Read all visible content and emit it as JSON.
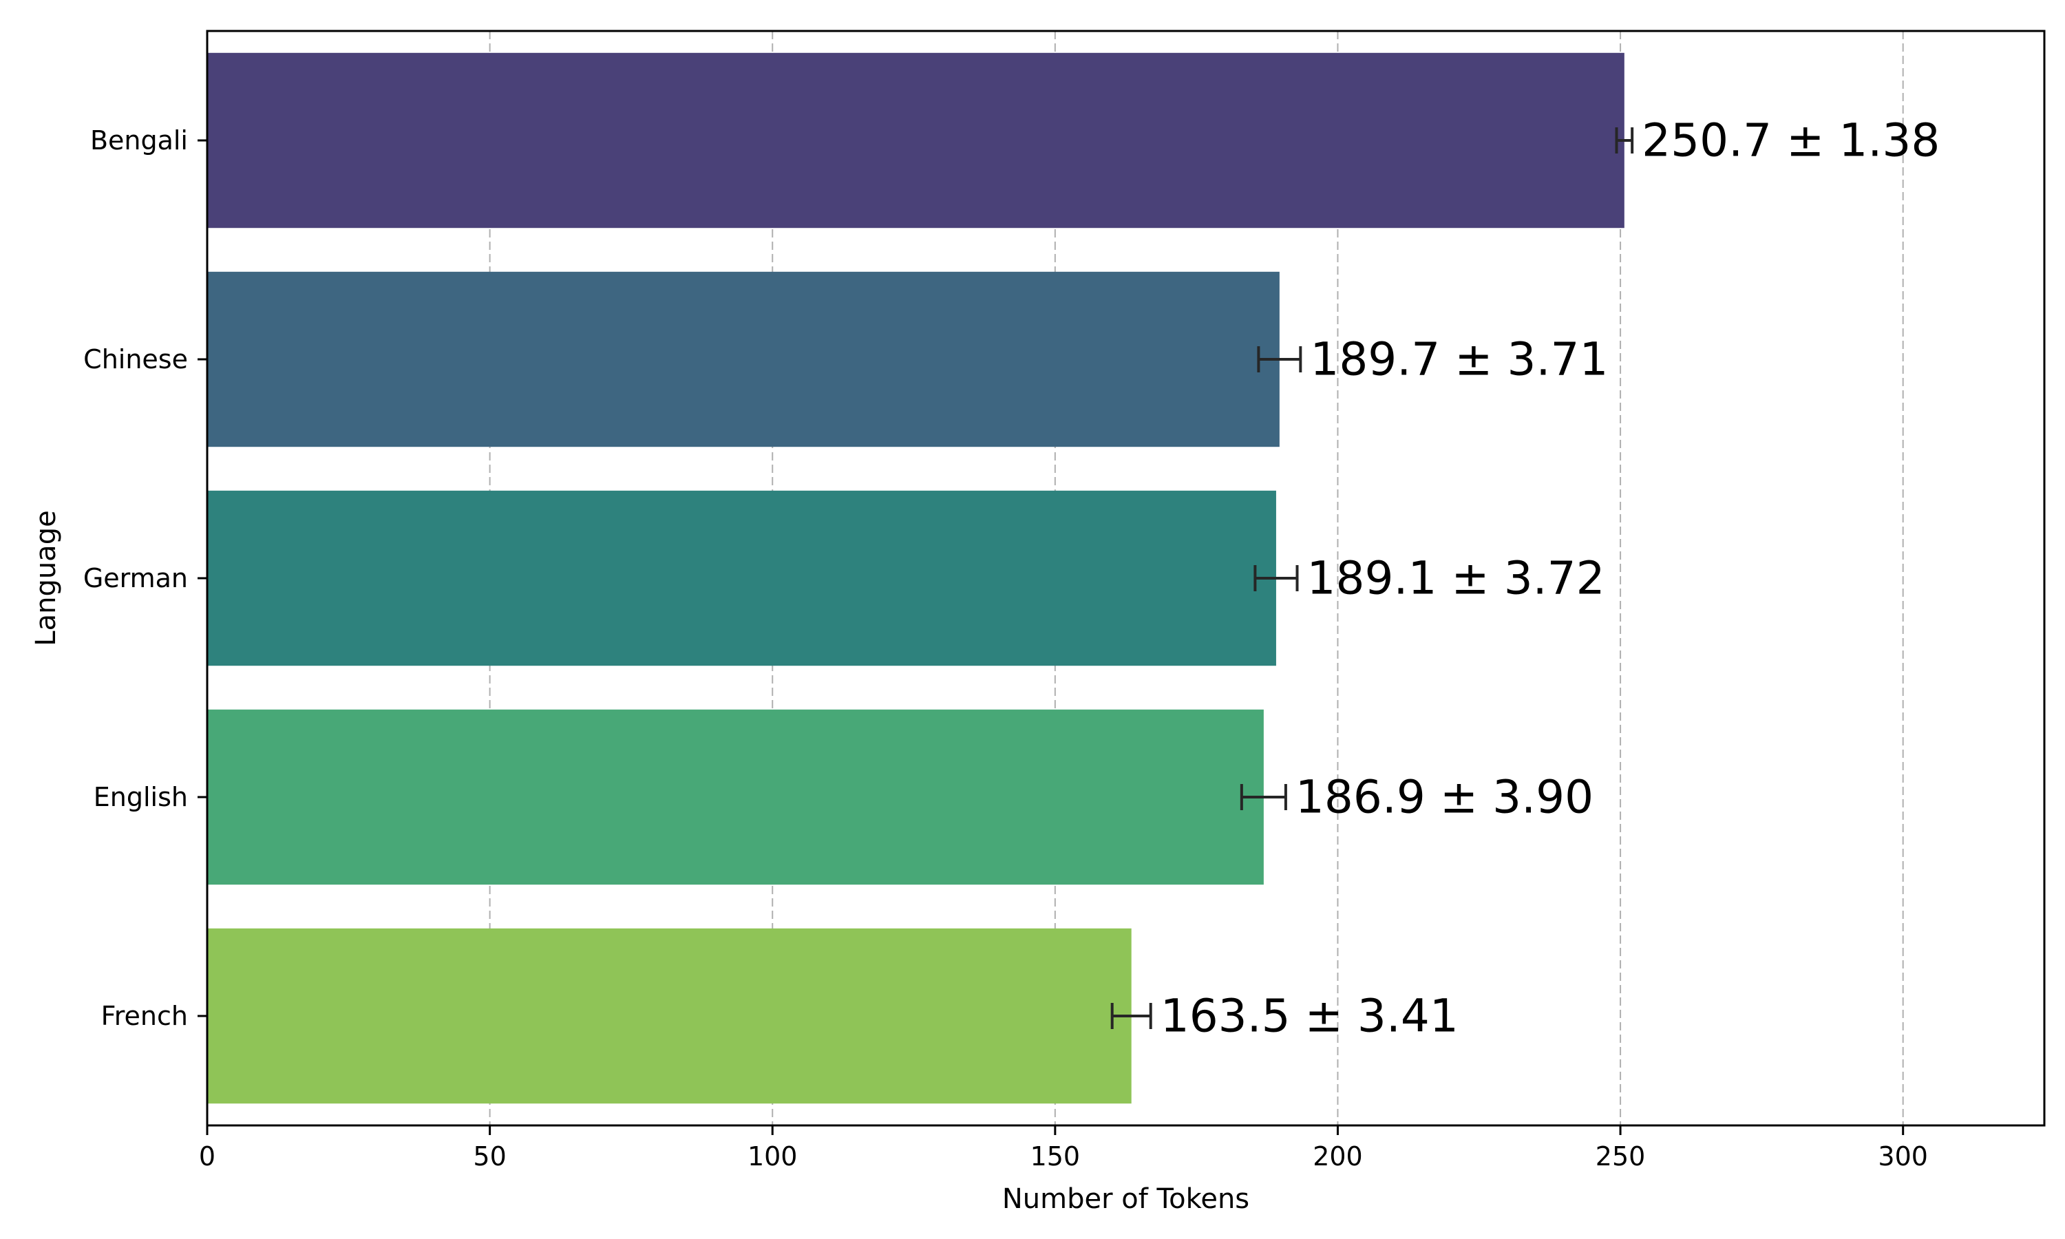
{
  "chart_data": {
    "type": "bar",
    "orientation": "horizontal",
    "title": "",
    "xlabel": "Number of Tokens",
    "ylabel": "Language",
    "xlim": [
      0,
      325
    ],
    "xticks": [
      0,
      50,
      100,
      150,
      200,
      250,
      300
    ],
    "grid": "vertical dashed",
    "categories": [
      "Bengali",
      "Chinese",
      "German",
      "English",
      "French"
    ],
    "values": [
      250.7,
      189.7,
      189.1,
      186.9,
      163.5
    ],
    "errors": [
      1.38,
      3.71,
      3.72,
      3.9,
      3.41
    ],
    "labels": [
      "250.7 ± 1.38",
      "189.7 ± 3.71",
      "189.1 ± 3.72",
      "186.9 ± 3.90",
      "163.5 ± 3.41"
    ],
    "colors": [
      "#4a4178",
      "#3e6681",
      "#2e827d",
      "#48a877",
      "#8fc457"
    ]
  }
}
